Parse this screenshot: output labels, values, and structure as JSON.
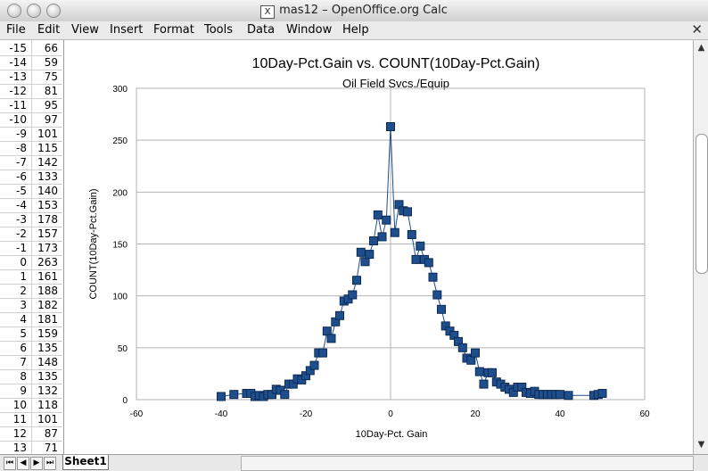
{
  "window": {
    "title": "mas12 – OpenOffice.org Calc",
    "x_icon": "X"
  },
  "menu": {
    "items": [
      "File",
      "Edit",
      "View",
      "Insert",
      "Format",
      "Tools",
      "Data",
      "Window",
      "Help"
    ],
    "close": "✕"
  },
  "rows": [
    {
      "label": "-15",
      "value": "66"
    },
    {
      "label": "-14",
      "value": "59"
    },
    {
      "label": "-13",
      "value": "75"
    },
    {
      "label": "-12",
      "value": "81"
    },
    {
      "label": "-11",
      "value": "95"
    },
    {
      "label": "-10",
      "value": "97"
    },
    {
      "label": "-9",
      "value": "101"
    },
    {
      "label": "-8",
      "value": "115"
    },
    {
      "label": "-7",
      "value": "142"
    },
    {
      "label": "-6",
      "value": "133"
    },
    {
      "label": "-5",
      "value": "140"
    },
    {
      "label": "-4",
      "value": "153"
    },
    {
      "label": "-3",
      "value": "178"
    },
    {
      "label": "-2",
      "value": "157"
    },
    {
      "label": "-1",
      "value": "173"
    },
    {
      "label": "0",
      "value": "263"
    },
    {
      "label": "1",
      "value": "161"
    },
    {
      "label": "2",
      "value": "188"
    },
    {
      "label": "3",
      "value": "182"
    },
    {
      "label": "4",
      "value": "181"
    },
    {
      "label": "5",
      "value": "159"
    },
    {
      "label": "6",
      "value": "135"
    },
    {
      "label": "7",
      "value": "148"
    },
    {
      "label": "8",
      "value": "135"
    },
    {
      "label": "9",
      "value": "132"
    },
    {
      "label": "10",
      "value": "118"
    },
    {
      "label": "11",
      "value": "101"
    },
    {
      "label": "12",
      "value": "87"
    },
    {
      "label": "13",
      "value": "71"
    }
  ],
  "sheet_tab": "Sheet1",
  "chart_data": {
    "type": "line",
    "title": "10Day-Pct.Gain vs. COUNT(10Day-Pct.Gain)",
    "subtitle": "Oil Field Svcs./Equip",
    "xlabel": "10Day-Pct. Gain",
    "ylabel": "COUNT(10Day-Pct.Gain)",
    "xlim": [
      -60,
      60
    ],
    "ylim": [
      0,
      300
    ],
    "xticks": [
      -60,
      -40,
      -20,
      0,
      20,
      40,
      60
    ],
    "yticks": [
      0,
      50,
      100,
      150,
      200,
      250,
      300
    ],
    "grid": "horizontal",
    "marker": "square",
    "color": "#1f4e8c",
    "x": [
      -40,
      -37,
      -34,
      -33,
      -32,
      -31,
      -30,
      -29,
      -28,
      -27,
      -26,
      -25,
      -24,
      -23,
      -22,
      -21,
      -20,
      -19,
      -18,
      -17,
      -16,
      -15,
      -14,
      -13,
      -12,
      -11,
      -10,
      -9,
      -8,
      -7,
      -6,
      -5,
      -4,
      -3,
      -2,
      -1,
      0,
      1,
      2,
      3,
      4,
      5,
      6,
      7,
      8,
      9,
      10,
      11,
      12,
      13,
      14,
      15,
      16,
      17,
      18,
      19,
      20,
      21,
      22,
      23,
      24,
      25,
      26,
      27,
      28,
      29,
      30,
      31,
      32,
      33,
      34,
      35,
      36,
      37,
      38,
      39,
      40,
      42,
      48,
      49,
      50
    ],
    "y": [
      3,
      5,
      6,
      6,
      3,
      4,
      3,
      5,
      5,
      10,
      9,
      5,
      15,
      15,
      20,
      19,
      23,
      28,
      33,
      45,
      45,
      66,
      59,
      75,
      81,
      95,
      97,
      101,
      115,
      142,
      133,
      140,
      153,
      178,
      157,
      173,
      263,
      161,
      188,
      182,
      181,
      159,
      135,
      148,
      135,
      132,
      118,
      101,
      87,
      71,
      66,
      62,
      56,
      50,
      40,
      38,
      45,
      27,
      15,
      26,
      26,
      17,
      15,
      12,
      10,
      7,
      12,
      12,
      7,
      6,
      8,
      5,
      5,
      5,
      5,
      5,
      5,
      4,
      4,
      5,
      6
    ]
  }
}
